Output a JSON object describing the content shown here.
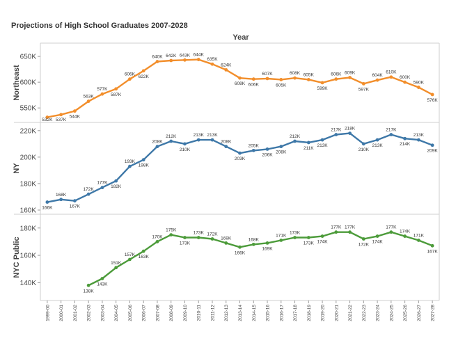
{
  "chart_data": {
    "type": "line",
    "title": "Projections of High School Graduates 2007-2028",
    "column_header": "Year",
    "categories": [
      "1999-00",
      "2000-01",
      "2001-02",
      "2002-03",
      "2003-04",
      "2004-05",
      "2005-06",
      "2006-07",
      "2007-08",
      "2008-09",
      "2009-10",
      "2010-11",
      "2011-12",
      "2012-13",
      "2013-14",
      "2014-15",
      "2015-16",
      "2016-17",
      "2017-18",
      "2018-19",
      "2019-20",
      "2020-21",
      "2021-22",
      "2022-23",
      "2023-24",
      "2024-25",
      "2025-26",
      "2026-27",
      "2027-28"
    ],
    "grid": false,
    "series": [
      {
        "name": "Northeast",
        "color": "#f28e2b",
        "ylim": [
          530,
          665
        ],
        "yticks": [
          550,
          600,
          650
        ],
        "ytick_labels": [
          "550K",
          "600K",
          "650K"
        ],
        "values": [
          532,
          537,
          544,
          563,
          577,
          587,
          606,
          622,
          640,
          642,
          643,
          644,
          635,
          624,
          608,
          606,
          607,
          605,
          608,
          605,
          599,
          606,
          609,
          597,
          604,
          610,
          600,
          590,
          576
        ],
        "labels": [
          "532K",
          "537K",
          "544K",
          "563K",
          "577K",
          "587K",
          "606K",
          "622K",
          "640K",
          "642K",
          "643K",
          "644K",
          "635K",
          "624K",
          "608K",
          "606K",
          "607K",
          "605K",
          "608K",
          "605K",
          "599K",
          "606K",
          "609K",
          "597K",
          "604K",
          "610K",
          "600K",
          "590K",
          "576K"
        ]
      },
      {
        "name": "NY",
        "color": "#3e78a8",
        "ylim": [
          160,
          222
        ],
        "yticks": [
          160,
          180,
          200,
          220
        ],
        "ytick_labels": [
          "160K",
          "180K",
          "200K",
          "220K"
        ],
        "values": [
          166,
          168,
          167,
          172,
          177,
          182,
          193,
          198,
          208,
          212,
          210,
          213,
          213,
          208,
          203,
          205,
          206,
          208,
          212,
          211,
          213,
          217,
          218,
          210,
          213,
          217,
          214,
          213,
          209
        ],
        "labels": [
          "166K",
          "168K",
          "167K",
          "172K",
          "177K",
          "182K",
          "193K",
          "198K",
          "208K",
          "212K",
          "210K",
          "213K",
          "213K",
          "208K",
          "203K",
          "205K",
          "206K",
          "208K",
          "212K",
          "211K",
          "213K",
          "217K",
          "218K",
          "210K",
          "213K",
          "217K",
          "214K",
          "213K",
          "209K"
        ]
      },
      {
        "name": "NYC Public",
        "color": "#4c9b3a",
        "ylim": [
          130,
          186
        ],
        "yticks": [
          140,
          160,
          180
        ],
        "ytick_labels": [
          "140K",
          "160K",
          "180K"
        ],
        "values": [
          null,
          null,
          null,
          138,
          143,
          151,
          157,
          163,
          170,
          175,
          173,
          173,
          172,
          169,
          166,
          168,
          169,
          171,
          173,
          173,
          174,
          177,
          177,
          172,
          174,
          177,
          174,
          171,
          167
        ],
        "labels": [
          null,
          null,
          null,
          "138K",
          "143K",
          "151K",
          "157K",
          "163K",
          "170K",
          "175K",
          "173K",
          "173K",
          "172K",
          "169K",
          "166K",
          "168K",
          "169K",
          "171K",
          "173K",
          "173K",
          "174K",
          "177K",
          "177K",
          "172K",
          "174K",
          "177K",
          "174K",
          "171K",
          "167K"
        ]
      }
    ]
  }
}
